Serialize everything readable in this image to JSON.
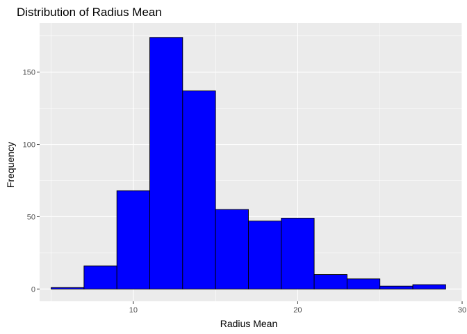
{
  "chart_data": {
    "type": "bar",
    "title": "Distribution of Radius Mean",
    "xlabel": "Radius Mean",
    "ylabel": "Frequency",
    "xlim": [
      4.3,
      30
    ],
    "ylim": [
      -8.5,
      184
    ],
    "x_ticks": [
      10,
      20,
      30
    ],
    "y_ticks": [
      0,
      50,
      100,
      150
    ],
    "grid": true,
    "background_color": "#ebebeb",
    "grid_color": "#ffffff",
    "bar_fill": "#0000ff",
    "bar_outline": "#000000",
    "bins": [
      {
        "start": 5,
        "end": 7,
        "count": 1
      },
      {
        "start": 7,
        "end": 9,
        "count": 16
      },
      {
        "start": 9,
        "end": 11,
        "count": 68
      },
      {
        "start": 11,
        "end": 13,
        "count": 174
      },
      {
        "start": 13,
        "end": 15,
        "count": 137
      },
      {
        "start": 15,
        "end": 17,
        "count": 55
      },
      {
        "start": 17,
        "end": 19,
        "count": 47
      },
      {
        "start": 19,
        "end": 21,
        "count": 49
      },
      {
        "start": 21,
        "end": 23,
        "count": 10
      },
      {
        "start": 23,
        "end": 25,
        "count": 7
      },
      {
        "start": 25,
        "end": 27,
        "count": 2
      },
      {
        "start": 27,
        "end": 29,
        "count": 3
      }
    ]
  }
}
